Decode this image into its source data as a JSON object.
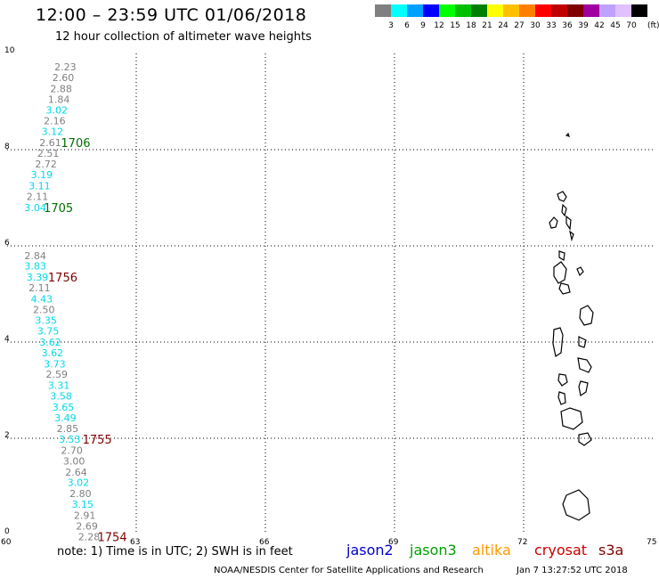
{
  "header": {
    "title": "12:00 – 23:59 UTC 01/06/2018",
    "subtitle": "12 hour collection of altimeter wave heights"
  },
  "legend": {
    "colors": [
      "#808080",
      "#00ffff",
      "#00a0ff",
      "#0000ff",
      "#00ff00",
      "#00c000",
      "#008000",
      "#ffff00",
      "#ffc000",
      "#ff8000",
      "#ff0000",
      "#c00000",
      "#800000",
      "#a000a0",
      "#c0a0ff",
      "#e0c0ff",
      "#000000"
    ],
    "values": [
      "3",
      "6",
      "9",
      "12",
      "15",
      "18",
      "21",
      "24",
      "27",
      "30",
      "33",
      "36",
      "39",
      "42",
      "45",
      "70"
    ],
    "unit": "(ft)"
  },
  "map": {
    "lon_range": [
      60,
      75
    ],
    "lat_range": [
      0,
      10
    ],
    "x_ticks": [
      "60",
      "63",
      "66",
      "69",
      "72",
      "75"
    ],
    "y_ticks": [
      "0",
      "2",
      "4",
      "6",
      "8",
      "10"
    ],
    "grid": "dotted",
    "colors": {
      "gray": "#808080",
      "cyan": "#00d8e8",
      "green": "#007000",
      "darkred": "#800000"
    },
    "points": [
      {
        "v": "2.23",
        "lon": 61.1,
        "lat": 9.72,
        "c": "gray"
      },
      {
        "v": "2.60",
        "lon": 61.05,
        "lat": 9.5,
        "c": "gray"
      },
      {
        "v": "2.88",
        "lon": 61.0,
        "lat": 9.27,
        "c": "gray"
      },
      {
        "v": "1.84",
        "lon": 60.95,
        "lat": 9.05,
        "c": "gray"
      },
      {
        "v": "3.02",
        "lon": 60.9,
        "lat": 8.82,
        "c": "cyan"
      },
      {
        "v": "2.16",
        "lon": 60.85,
        "lat": 8.6,
        "c": "gray"
      },
      {
        "v": "3.12",
        "lon": 60.8,
        "lat": 8.38,
        "c": "cyan"
      },
      {
        "v": "2.61",
        "lon": 60.75,
        "lat": 8.15,
        "c": "gray"
      },
      {
        "v": "2.51",
        "lon": 60.7,
        "lat": 7.93,
        "c": "gray"
      },
      {
        "v": "2.72",
        "lon": 60.65,
        "lat": 7.7,
        "c": "gray"
      },
      {
        "v": "3.19",
        "lon": 60.55,
        "lat": 7.48,
        "c": "cyan"
      },
      {
        "v": "3.11",
        "lon": 60.5,
        "lat": 7.25,
        "c": "cyan"
      },
      {
        "v": "2.11",
        "lon": 60.45,
        "lat": 7.03,
        "c": "gray"
      },
      {
        "v": "3.04",
        "lon": 60.4,
        "lat": 6.8,
        "c": "cyan"
      },
      {
        "v": "2.84",
        "lon": 60.4,
        "lat": 5.8,
        "c": "gray"
      },
      {
        "v": "3.83",
        "lon": 60.4,
        "lat": 5.58,
        "c": "cyan"
      },
      {
        "v": "3.39",
        "lon": 60.45,
        "lat": 5.35,
        "c": "cyan"
      },
      {
        "v": "2.11",
        "lon": 60.5,
        "lat": 5.13,
        "c": "gray"
      },
      {
        "v": "4.43",
        "lon": 60.55,
        "lat": 4.9,
        "c": "cyan"
      },
      {
        "v": "2.50",
        "lon": 60.6,
        "lat": 4.68,
        "c": "gray"
      },
      {
        "v": "3.35",
        "lon": 60.65,
        "lat": 4.45,
        "c": "cyan"
      },
      {
        "v": "3.75",
        "lon": 60.7,
        "lat": 4.23,
        "c": "cyan"
      },
      {
        "v": "3.62",
        "lon": 60.75,
        "lat": 4.0,
        "c": "cyan"
      },
      {
        "v": "3.62",
        "lon": 60.8,
        "lat": 3.78,
        "c": "cyan"
      },
      {
        "v": "3.73",
        "lon": 60.85,
        "lat": 3.55,
        "c": "cyan"
      },
      {
        "v": "2.59",
        "lon": 60.9,
        "lat": 3.33,
        "c": "gray"
      },
      {
        "v": "3.31",
        "lon": 60.95,
        "lat": 3.1,
        "c": "cyan"
      },
      {
        "v": "3.58",
        "lon": 61.0,
        "lat": 2.88,
        "c": "cyan"
      },
      {
        "v": "3.65",
        "lon": 61.05,
        "lat": 2.65,
        "c": "cyan"
      },
      {
        "v": "3.49",
        "lon": 61.1,
        "lat": 2.43,
        "c": "cyan"
      },
      {
        "v": "2.85",
        "lon": 61.15,
        "lat": 2.2,
        "c": "gray"
      },
      {
        "v": "3.53",
        "lon": 61.2,
        "lat": 1.98,
        "c": "cyan"
      },
      {
        "v": "2.70",
        "lon": 61.25,
        "lat": 1.75,
        "c": "gray"
      },
      {
        "v": "3.00",
        "lon": 61.3,
        "lat": 1.53,
        "c": "gray"
      },
      {
        "v": "2.64",
        "lon": 61.35,
        "lat": 1.3,
        "c": "gray"
      },
      {
        "v": "3.02",
        "lon": 61.4,
        "lat": 1.08,
        "c": "cyan"
      },
      {
        "v": "2.80",
        "lon": 61.45,
        "lat": 0.85,
        "c": "gray"
      },
      {
        "v": "3.15",
        "lon": 61.5,
        "lat": 0.63,
        "c": "cyan"
      },
      {
        "v": "2.91",
        "lon": 61.55,
        "lat": 0.4,
        "c": "gray"
      },
      {
        "v": "2.69",
        "lon": 61.6,
        "lat": 0.18,
        "c": "gray"
      },
      {
        "v": "2.28",
        "lon": 61.65,
        "lat": -0.05,
        "c": "gray"
      }
    ],
    "pass_times": [
      {
        "t": "1706",
        "lon": 61.25,
        "lat": 8.15,
        "c": "green"
      },
      {
        "t": "1705",
        "lon": 60.85,
        "lat": 6.8,
        "c": "green"
      },
      {
        "t": "1756",
        "lon": 60.95,
        "lat": 5.35,
        "c": "darkred"
      },
      {
        "t": "1755",
        "lon": 61.75,
        "lat": 1.98,
        "c": "darkred"
      },
      {
        "t": "1754",
        "lon": 62.1,
        "lat": -0.05,
        "c": "darkred"
      }
    ]
  },
  "footer": {
    "note": "note:  1) Time is in UTC;  2) SWH is in feet",
    "satellites": [
      {
        "name": "jason2",
        "color": "#0000cc"
      },
      {
        "name": "jason3",
        "color": "#00a000"
      },
      {
        "name": "altika",
        "color": "#ff9900"
      },
      {
        "name": "cryosat",
        "color": "#cc0000"
      },
      {
        "name": "s3a",
        "color": "#800000"
      }
    ],
    "credit": "NOAA/NESDIS Center for Satellite Applications and Research",
    "timestamp": "Jan  7 13:27:52 UTC 2018"
  }
}
